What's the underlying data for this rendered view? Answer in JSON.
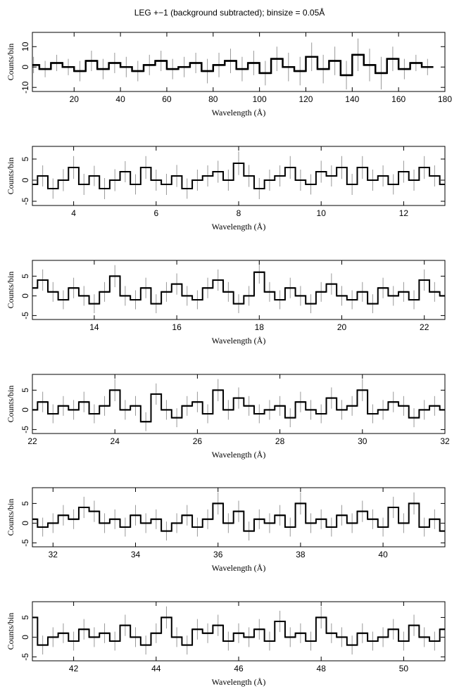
{
  "chart_data": [
    {
      "type": "line",
      "title": "LEG +−1 (background subtracted); binsize = 0.05Å",
      "xlabel": "Wavelength (Å)",
      "ylabel": "Counts/bin",
      "color": "#000000",
      "error_color": "#999999",
      "xlim": [
        2,
        180
      ],
      "ylim": [
        -12,
        17
      ],
      "xticks": [
        20,
        40,
        60,
        80,
        100,
        120,
        140,
        160,
        180
      ],
      "yticks": [
        -10,
        0,
        10
      ],
      "x": [
        2.5,
        7.5,
        12.5,
        17.5,
        22.5,
        27.5,
        32.5,
        37.5,
        42.5,
        47.5,
        52.5,
        57.5,
        62.5,
        67.5,
        72.5,
        77.5,
        82.5,
        87.5,
        92.5,
        97.5,
        102.5,
        107.5,
        112.5,
        117.5,
        122.5,
        127.5,
        132.5,
        137.5,
        142.5,
        147.5,
        152.5,
        157.5,
        162.5,
        167.5,
        172.5
      ],
      "values": [
        1,
        -1,
        2,
        0,
        -2,
        3,
        -1,
        2,
        0,
        -2,
        1,
        3,
        -1,
        0,
        2,
        -2,
        1,
        3,
        -1,
        2,
        -3,
        4,
        0,
        -2,
        5,
        -1,
        3,
        -4,
        6,
        1,
        -3,
        4,
        -1,
        2,
        0
      ],
      "errors": [
        4,
        4,
        4,
        4,
        5,
        5,
        5,
        5,
        5,
        5,
        5,
        5,
        5,
        5,
        5,
        6,
        6,
        6,
        6,
        6,
        6,
        6,
        7,
        7,
        7,
        7,
        7,
        7,
        8,
        8,
        8,
        6,
        5,
        4,
        4
      ]
    },
    {
      "type": "line",
      "xlabel": "Wavelength (Å)",
      "ylabel": "Counts/bin",
      "color": "#000000",
      "error_color": "#999999",
      "xlim": [
        3,
        13
      ],
      "ylim": [
        -6,
        8
      ],
      "xticks": [
        4,
        6,
        8,
        10,
        12
      ],
      "yticks": [
        -5,
        0,
        5
      ],
      "x": [
        3,
        3.25,
        3.5,
        3.75,
        4,
        4.25,
        4.5,
        4.75,
        5,
        5.25,
        5.5,
        5.75,
        6,
        6.25,
        6.5,
        6.75,
        7,
        7.25,
        7.5,
        7.75,
        8,
        8.25,
        8.5,
        8.75,
        9,
        9.25,
        9.5,
        9.75,
        10,
        10.25,
        10.5,
        10.75,
        11,
        11.25,
        11.5,
        11.75,
        12,
        12.25,
        12.5,
        12.75,
        13
      ],
      "values": [
        -1,
        1,
        -2,
        0,
        3,
        -1,
        1,
        -2,
        0,
        2,
        -1,
        3,
        0,
        -1,
        1,
        -2,
        0,
        1,
        2,
        0,
        4,
        1,
        -2,
        0,
        1,
        3,
        0,
        -1,
        2,
        1,
        3,
        -1,
        3,
        0,
        1,
        -1,
        2,
        0,
        3,
        1,
        -1
      ],
      "errors": [
        2.5,
        2.5,
        2.4,
        2.6,
        2.7,
        2.5,
        2.4,
        2.5,
        2.6,
        2.5,
        2.4,
        2.7,
        2.5,
        2.5,
        2.6,
        2.4,
        2.5,
        2.5,
        2.6,
        2.5,
        2.8,
        2.6,
        2.5,
        2.5,
        2.5,
        2.7,
        2.5,
        2.4,
        2.6,
        2.5,
        2.7,
        2.5,
        2.7,
        2.5,
        2.5,
        2.4,
        2.6,
        2.5,
        2.7,
        2.5,
        2.5
      ]
    },
    {
      "type": "line",
      "xlabel": "Wavelength (Å)",
      "ylabel": "Counts/bin",
      "color": "#000000",
      "error_color": "#999999",
      "xlim": [
        12.5,
        22.5
      ],
      "ylim": [
        -6,
        9
      ],
      "xticks": [
        14,
        16,
        18,
        20,
        22
      ],
      "yticks": [
        -5,
        0,
        5
      ],
      "x": [
        12.5,
        12.75,
        13,
        13.25,
        13.5,
        13.75,
        14,
        14.25,
        14.5,
        14.75,
        15,
        15.25,
        15.5,
        15.75,
        16,
        16.25,
        16.5,
        16.75,
        17,
        17.25,
        17.5,
        17.75,
        18,
        18.25,
        18.5,
        18.75,
        19,
        19.25,
        19.5,
        19.75,
        20,
        20.25,
        20.5,
        20.75,
        21,
        21.25,
        21.5,
        21.75,
        22,
        22.25,
        22.5
      ],
      "values": [
        2,
        4,
        1,
        -1,
        2,
        0,
        -2,
        1,
        5,
        0,
        -1,
        2,
        -2,
        1,
        3,
        0,
        -1,
        2,
        4,
        1,
        -2,
        0,
        6,
        1,
        -1,
        2,
        0,
        -2,
        1,
        3,
        0,
        -1,
        1,
        -2,
        2,
        0,
        1,
        -1,
        4,
        1,
        0
      ],
      "errors": [
        2.5,
        2.7,
        2.5,
        2.4,
        2.6,
        2.5,
        2.4,
        2.5,
        2.8,
        2.5,
        2.4,
        2.6,
        2.4,
        2.5,
        2.7,
        2.5,
        2.4,
        2.6,
        2.7,
        2.5,
        2.4,
        2.5,
        2.9,
        2.5,
        2.4,
        2.6,
        2.5,
        2.4,
        2.5,
        2.7,
        2.5,
        2.4,
        2.5,
        2.4,
        2.6,
        2.5,
        2.5,
        2.4,
        2.7,
        2.5,
        2.5
      ]
    },
    {
      "type": "line",
      "xlabel": "Wavelength (Å)",
      "ylabel": "Counts/bin",
      "color": "#000000",
      "error_color": "#999999",
      "xlim": [
        22,
        32
      ],
      "ylim": [
        -6,
        9
      ],
      "xticks": [
        22,
        24,
        26,
        28,
        30,
        32
      ],
      "yticks": [
        -5,
        0,
        5
      ],
      "x": [
        22,
        22.25,
        22.5,
        22.75,
        23,
        23.25,
        23.5,
        23.75,
        24,
        24.25,
        24.5,
        24.75,
        25,
        25.25,
        25.5,
        25.75,
        26,
        26.25,
        26.5,
        26.75,
        27,
        27.25,
        27.5,
        27.75,
        28,
        28.25,
        28.5,
        28.75,
        29,
        29.25,
        29.5,
        29.75,
        30,
        30.25,
        30.5,
        30.75,
        31,
        31.25,
        31.5,
        31.75,
        32
      ],
      "values": [
        0,
        2,
        -1,
        1,
        0,
        2,
        -1,
        1,
        5,
        0,
        1,
        -3,
        4,
        0,
        -2,
        1,
        2,
        -1,
        5,
        0,
        3,
        1,
        -1,
        0,
        1,
        -2,
        2,
        0,
        -1,
        3,
        0,
        1,
        5,
        -1,
        0,
        2,
        1,
        -2,
        0,
        1,
        0
      ],
      "errors": [
        2.5,
        2.6,
        2.4,
        2.5,
        2.5,
        2.6,
        2.4,
        2.5,
        2.8,
        2.5,
        2.5,
        2.4,
        2.7,
        2.5,
        2.4,
        2.5,
        2.6,
        2.4,
        2.8,
        2.5,
        2.7,
        2.5,
        2.4,
        2.5,
        2.5,
        2.4,
        2.6,
        2.5,
        2.4,
        2.7,
        2.5,
        2.5,
        2.8,
        2.4,
        2.5,
        2.6,
        2.5,
        2.4,
        2.5,
        2.5,
        2.5
      ]
    },
    {
      "type": "line",
      "xlabel": "Wavelength (Å)",
      "ylabel": "Counts/bin",
      "color": "#000000",
      "error_color": "#999999",
      "xlim": [
        31.5,
        41.5
      ],
      "ylim": [
        -6,
        9
      ],
      "xticks": [
        32,
        34,
        36,
        38,
        40
      ],
      "yticks": [
        -5,
        0,
        5
      ],
      "x": [
        31.5,
        31.75,
        32,
        32.25,
        32.5,
        32.75,
        33,
        33.25,
        33.5,
        33.75,
        34,
        34.25,
        34.5,
        34.75,
        35,
        35.25,
        35.5,
        35.75,
        36,
        36.25,
        36.5,
        36.75,
        37,
        37.25,
        37.5,
        37.75,
        38,
        38.25,
        38.5,
        38.75,
        39,
        39.25,
        39.5,
        39.75,
        40,
        40.25,
        40.5,
        40.75,
        41,
        41.25,
        41.5
      ],
      "values": [
        1,
        -1,
        0,
        2,
        1,
        4,
        3,
        0,
        1,
        -1,
        2,
        0,
        1,
        -2,
        0,
        2,
        -1,
        1,
        5,
        0,
        3,
        -2,
        1,
        0,
        2,
        -1,
        5,
        0,
        1,
        -1,
        2,
        0,
        3,
        1,
        -1,
        4,
        0,
        5,
        -1,
        1,
        -2
      ],
      "errors": [
        2.5,
        2.4,
        2.5,
        2.6,
        2.5,
        2.7,
        2.7,
        2.5,
        2.5,
        2.4,
        2.6,
        2.5,
        2.5,
        2.4,
        2.5,
        2.6,
        2.4,
        2.5,
        2.8,
        2.5,
        2.7,
        2.4,
        2.5,
        2.5,
        2.6,
        2.4,
        2.8,
        2.5,
        2.5,
        2.4,
        2.6,
        2.5,
        2.7,
        2.5,
        2.4,
        2.7,
        2.5,
        2.8,
        2.4,
        2.5,
        2.4
      ]
    },
    {
      "type": "line",
      "xlabel": "Wavelength (Å)",
      "ylabel": "Counts/bin",
      "color": "#000000",
      "error_color": "#999999",
      "xlim": [
        41,
        51
      ],
      "ylim": [
        -6,
        9
      ],
      "xticks": [
        42,
        44,
        46,
        48,
        50
      ],
      "yticks": [
        -5,
        0,
        5
      ],
      "x": [
        41,
        41.25,
        41.5,
        41.75,
        42,
        42.25,
        42.5,
        42.75,
        43,
        43.25,
        43.5,
        43.75,
        44,
        44.25,
        44.5,
        44.75,
        45,
        45.25,
        45.5,
        45.75,
        46,
        46.25,
        46.5,
        46.75,
        47,
        47.25,
        47.5,
        47.75,
        48,
        48.25,
        48.5,
        48.75,
        49,
        49.25,
        49.5,
        49.75,
        50,
        50.25,
        50.5,
        50.75,
        51
      ],
      "values": [
        5,
        -2,
        0,
        1,
        -1,
        2,
        0,
        1,
        -1,
        3,
        0,
        -2,
        1,
        5,
        0,
        -2,
        2,
        1,
        3,
        -1,
        1,
        0,
        2,
        -1,
        4,
        0,
        1,
        -1,
        5,
        1,
        0,
        -2,
        1,
        -1,
        0,
        2,
        -1,
        3,
        0,
        -1,
        2
      ],
      "errors": [
        2.8,
        2.4,
        2.5,
        2.5,
        2.4,
        2.6,
        2.5,
        2.5,
        2.4,
        2.7,
        2.5,
        2.4,
        2.5,
        2.8,
        2.5,
        2.4,
        2.6,
        2.5,
        2.7,
        2.4,
        2.5,
        2.5,
        2.6,
        2.4,
        2.7,
        2.5,
        2.5,
        2.4,
        2.8,
        2.5,
        2.5,
        2.4,
        2.5,
        2.4,
        2.5,
        2.6,
        2.4,
        2.7,
        2.5,
        2.4,
        2.6
      ]
    }
  ]
}
